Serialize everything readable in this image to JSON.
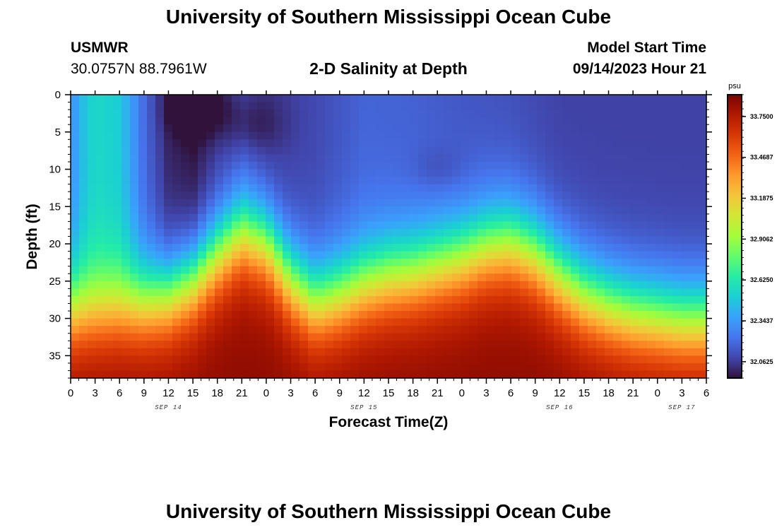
{
  "header": {
    "title": "University of Southern Mississippi Ocean Cube",
    "station": "USMWR",
    "coords": "30.0757N  88.7961W",
    "subtitle": "2-D Salinity at Depth",
    "model_label": "Model Start Time",
    "model_time": "09/14/2023 Hour 21"
  },
  "footer": {
    "title": "University of Southern Mississippi Ocean Cube"
  },
  "chart_data": {
    "type": "heatmap",
    "title": "2-D Salinity at Depth",
    "xlabel": "Forecast Time(Z)",
    "ylabel": "Depth (ft)",
    "x_range_hours": [
      0,
      78
    ],
    "x_tick_step_hours": 3,
    "x_tick_labels": [
      "0",
      "3",
      "6",
      "9",
      "12",
      "15",
      "18",
      "21",
      "0",
      "3",
      "6",
      "9",
      "12",
      "15",
      "18",
      "21",
      "0",
      "3",
      "6",
      "9",
      "12",
      "15",
      "18",
      "21",
      "0",
      "3",
      "6"
    ],
    "date_labels": [
      {
        "text": "SEP 14",
        "hour": 12
      },
      {
        "text": "SEP 15",
        "hour": 36
      },
      {
        "text": "SEP 16",
        "hour": 60
      },
      {
        "text": "SEP 17",
        "hour": 75
      }
    ],
    "y_range_ft": [
      0,
      38
    ],
    "y_tick_labels": [
      0,
      5,
      10,
      15,
      20,
      25,
      30,
      35
    ],
    "colorbar": {
      "unit": "psu",
      "range": [
        31.95,
        33.9
      ],
      "tick_values": [
        32.0625,
        32.3437,
        32.625,
        32.9062,
        33.1875,
        33.4687,
        33.75
      ],
      "tick_labels": [
        "32.0625",
        "32.3437",
        "32.6250",
        "32.9062",
        "33.1875",
        "33.4687",
        "33.7500"
      ],
      "colors": [
        "#30123b",
        "#4145ab",
        "#4675ed",
        "#39a2fc",
        "#1bcfd4",
        "#24eca6",
        "#61fc6c",
        "#a4fc3b",
        "#d1e834",
        "#f3c63a",
        "#fe9b2d",
        "#f36315",
        "#d93806",
        "#b11901",
        "#7a0402"
      ]
    },
    "halocline_depth_ft_by_hour": [
      [
        0,
        29
      ],
      [
        3,
        29
      ],
      [
        6,
        28.5
      ],
      [
        9,
        28
      ],
      [
        12,
        27
      ],
      [
        15,
        25
      ],
      [
        18,
        21.5
      ],
      [
        21,
        18.5
      ],
      [
        24,
        20
      ],
      [
        27,
        25
      ],
      [
        30,
        28
      ],
      [
        33,
        27
      ],
      [
        36,
        25.5
      ],
      [
        39,
        24.5
      ],
      [
        42,
        24
      ],
      [
        45,
        23
      ],
      [
        48,
        22
      ],
      [
        51,
        20.5
      ],
      [
        54,
        20
      ],
      [
        57,
        21.5
      ],
      [
        60,
        24.5
      ],
      [
        63,
        27
      ],
      [
        66,
        28.5
      ],
      [
        69,
        29.5
      ],
      [
        72,
        30
      ],
      [
        75,
        30.5
      ],
      [
        78,
        30.5
      ]
    ],
    "surface_salinity_psu_by_hour": [
      [
        0,
        32.3
      ],
      [
        1.5,
        32.45
      ],
      [
        3,
        32.55
      ],
      [
        6,
        32.5
      ],
      [
        9,
        32.2
      ],
      [
        12,
        32.0
      ],
      [
        15,
        31.95
      ],
      [
        18,
        32.05
      ],
      [
        21,
        32.1
      ],
      [
        24,
        32.05
      ],
      [
        30,
        32.1
      ],
      [
        36,
        32.18
      ],
      [
        42,
        32.17
      ],
      [
        48,
        32.14
      ],
      [
        54,
        32.12
      ],
      [
        60,
        32.08
      ],
      [
        66,
        32.08
      ],
      [
        72,
        32.08
      ],
      [
        78,
        32.08
      ]
    ],
    "deep_salinity_psu": 33.85
  }
}
